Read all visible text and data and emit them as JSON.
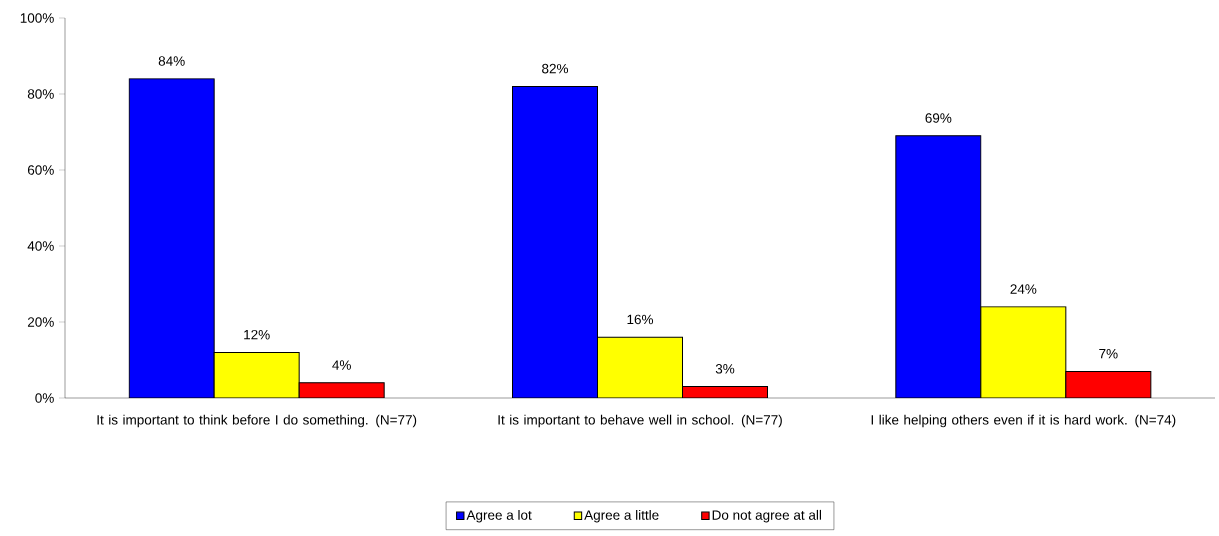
{
  "chart_data": {
    "type": "bar",
    "categories": [
      "It is important to think before I do something. (N=77)",
      "It is important to behave well in school. (N=77)",
      "I like helping others even if it is hard work. (N=74)"
    ],
    "series": [
      {
        "name": "Agree a lot",
        "color": "#0000ff",
        "values": [
          84,
          82,
          69
        ],
        "value_labels": [
          "84%",
          "82%",
          "69%"
        ]
      },
      {
        "name": "Agree a little",
        "color": "#ffff00",
        "values": [
          12,
          16,
          24
        ],
        "value_labels": [
          "12%",
          "16%",
          "24%"
        ]
      },
      {
        "name": "Do not agree at all",
        "color": "#ff0000",
        "values": [
          4,
          3,
          7
        ],
        "value_labels": [
          "4%",
          "3%",
          "7%"
        ]
      }
    ],
    "ylim": [
      0,
      100
    ],
    "yticks": [
      {
        "value": 0,
        "label": "0%"
      },
      {
        "value": 20,
        "label": "20%"
      },
      {
        "value": 40,
        "label": "40%"
      },
      {
        "value": 60,
        "label": "60%"
      },
      {
        "value": 80,
        "label": "80%"
      },
      {
        "value": 100,
        "label": "100%"
      }
    ],
    "grid": false,
    "legend": "bottom"
  }
}
